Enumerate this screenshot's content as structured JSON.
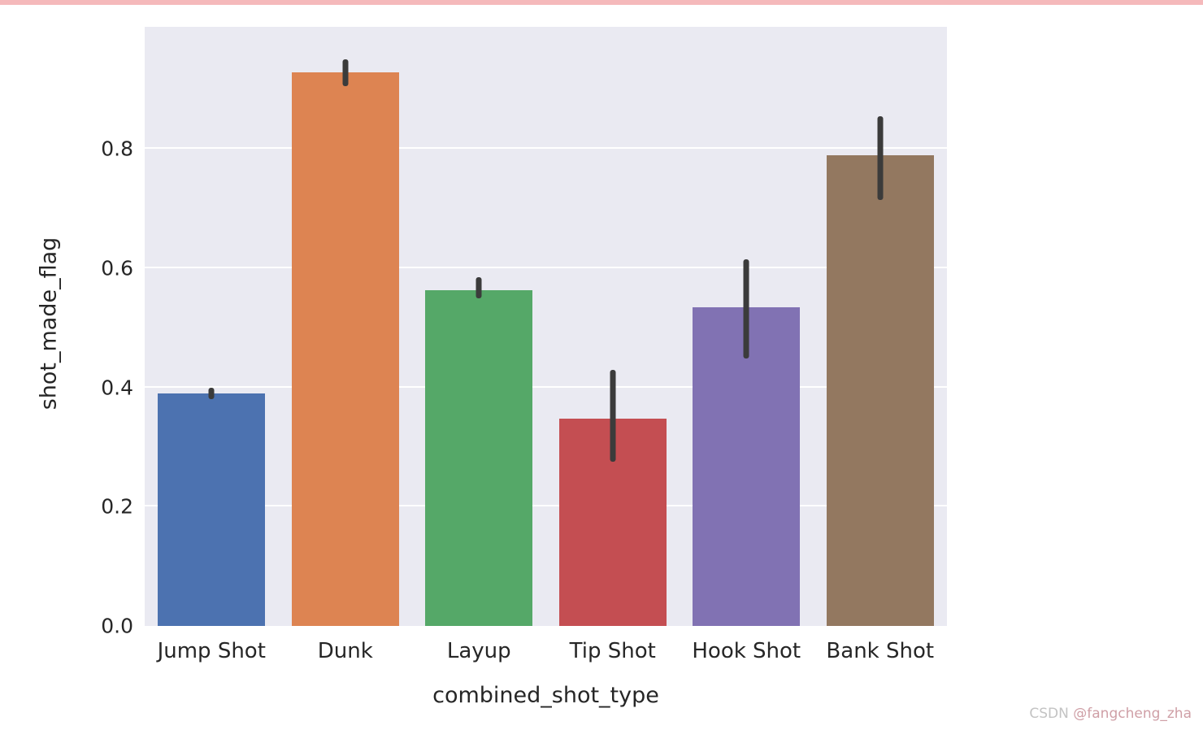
{
  "page": {
    "watermark_prefix": "CSDN",
    "watermark_user": "@fangcheng_zha",
    "top_strip_color": "#f5b9bb"
  },
  "chart_data": {
    "type": "bar",
    "title": "",
    "xlabel": "combined_shot_type",
    "ylabel": "shot_made_flag",
    "categories": [
      "Jump Shot",
      "Dunk",
      "Layup",
      "Tip Shot",
      "Hook Shot",
      "Bank Shot"
    ],
    "values": [
      0.39,
      0.928,
      0.563,
      0.348,
      0.535,
      0.79
    ],
    "errors": [
      [
        0.38,
        0.4
      ],
      [
        0.905,
        0.95
      ],
      [
        0.55,
        0.585
      ],
      [
        0.275,
        0.43
      ],
      [
        0.448,
        0.615
      ],
      [
        0.715,
        0.855
      ]
    ],
    "yticks": [
      0.0,
      0.2,
      0.4,
      0.6,
      0.8
    ],
    "ytick_labels": [
      "0.0",
      "0.2",
      "0.4",
      "0.6",
      "0.8"
    ],
    "ylim": [
      0,
      1.005
    ],
    "bar_colors": [
      "#4c72b0",
      "#dd8452",
      "#55a868",
      "#c44e52",
      "#8172b3",
      "#937860"
    ],
    "plot_bg": "#eaeaf2",
    "grid_color": "#ffffff",
    "errorbar_color": "#3b3b3b",
    "grid": true,
    "legend": "none"
  }
}
